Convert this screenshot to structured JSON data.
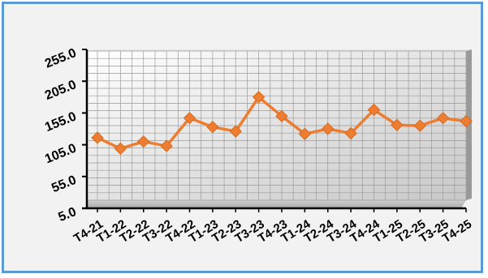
{
  "chart_data": {
    "type": "line",
    "categories": [
      "T4-21",
      "T1-22",
      "T2-22",
      "T3-22",
      "T4-22",
      "T1-23",
      "T2-23",
      "T3-23",
      "T4-23",
      "T1-24",
      "T2-24",
      "T3-24",
      "T4-24",
      "T1-25",
      "T2-25",
      "T3-25",
      "T4-25"
    ],
    "series": [
      {
        "values": [
          116,
          99,
          110,
          103,
          147,
          133,
          126,
          180,
          150,
          122,
          130,
          123,
          160,
          136,
          135,
          147,
          142
        ],
        "color": "#ed7d31"
      }
    ],
    "yticks": [
      "5.0",
      "55.0",
      "105.0",
      "155.0",
      "205.0",
      "255.0"
    ],
    "ylim": [
      5,
      255
    ],
    "grid": true,
    "legend": "none"
  }
}
